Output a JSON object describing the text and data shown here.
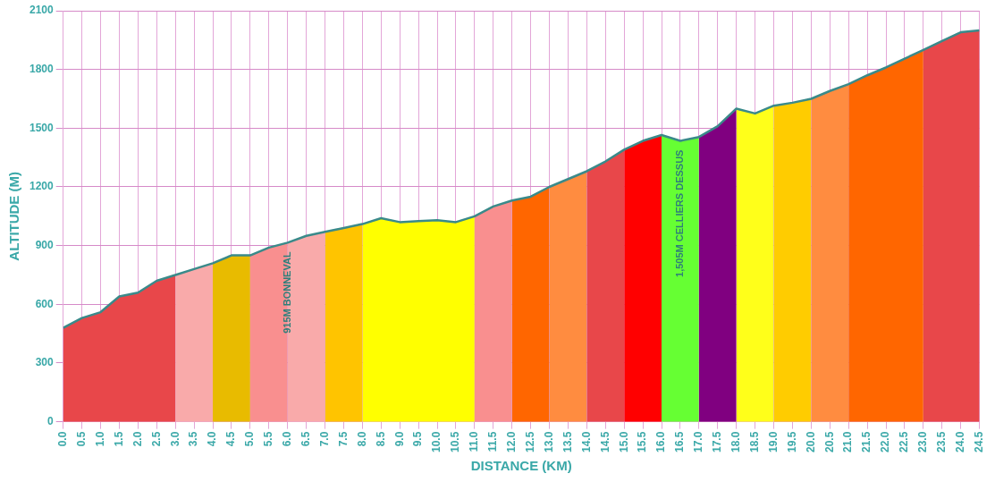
{
  "chart_data": {
    "type": "area",
    "xlabel": "DISTANCE (KM)",
    "ylabel": "ALTITUDE (M)",
    "xlim": [
      0,
      24.5
    ],
    "xticks": [
      {
        "value": 0,
        "label": "0.0"
      },
      {
        "value": 0.5,
        "label": "0.5"
      },
      {
        "value": 1,
        "label": "1.0"
      },
      {
        "value": 1.5,
        "label": "1.5"
      },
      {
        "value": 2,
        "label": "2.0"
      },
      {
        "value": 2.5,
        "label": "2.5"
      },
      {
        "value": 3,
        "label": "3.0"
      },
      {
        "value": 3.5,
        "label": "3.5"
      },
      {
        "value": 4,
        "label": "4.0"
      },
      {
        "value": 4.5,
        "label": "4.5"
      },
      {
        "value": 5,
        "label": "5.0"
      },
      {
        "value": 5.5,
        "label": "5.5"
      },
      {
        "value": 6,
        "label": "6.0"
      },
      {
        "value": 6.5,
        "label": "6.5"
      },
      {
        "value": 7,
        "label": "7.0"
      },
      {
        "value": 7.5,
        "label": "7.5"
      },
      {
        "value": 8,
        "label": "8.0"
      },
      {
        "value": 8.5,
        "label": "8.5"
      },
      {
        "value": 9,
        "label": "9.0"
      },
      {
        "value": 9.5,
        "label": "9.5"
      },
      {
        "value": 10,
        "label": "10.0"
      },
      {
        "value": 10.5,
        "label": "10.5"
      },
      {
        "value": 11,
        "label": "11.0"
      },
      {
        "value": 11.5,
        "label": "11.5"
      },
      {
        "value": 12,
        "label": "12.0"
      },
      {
        "value": 12.5,
        "label": "12.5"
      },
      {
        "value": 13,
        "label": "13.0"
      },
      {
        "value": 13.5,
        "label": "13.5"
      },
      {
        "value": 14,
        "label": "14.0"
      },
      {
        "value": 14.5,
        "label": "14.5"
      },
      {
        "value": 15,
        "label": "15.0"
      },
      {
        "value": 15.5,
        "label": "15.5"
      },
      {
        "value": 16,
        "label": "16.0"
      },
      {
        "value": 16.5,
        "label": "16.5"
      },
      {
        "value": 17,
        "label": "17.0"
      },
      {
        "value": 17.5,
        "label": "17.5"
      },
      {
        "value": 18,
        "label": "18.0"
      },
      {
        "value": 18.5,
        "label": "18.5"
      },
      {
        "value": 19,
        "label": "19.0"
      },
      {
        "value": 19.5,
        "label": "19.5"
      },
      {
        "value": 20,
        "label": "20.0"
      },
      {
        "value": 20.5,
        "label": "20.5"
      },
      {
        "value": 21,
        "label": "21.0"
      },
      {
        "value": 21.5,
        "label": "21.5"
      },
      {
        "value": 22,
        "label": "22.0"
      },
      {
        "value": 22.5,
        "label": "22.5"
      },
      {
        "value": 23,
        "label": "23.0"
      },
      {
        "value": 23.5,
        "label": "23.5"
      },
      {
        "value": 24,
        "label": "24.0"
      },
      {
        "value": 24.5,
        "label": "24.5"
      }
    ],
    "ylim": [
      0,
      2100
    ],
    "yticks": [
      0,
      300,
      600,
      900,
      1200,
      1500,
      1800,
      2100
    ],
    "grid": true,
    "legend": false,
    "series": [
      {
        "color": "#e8474a",
        "x": [
          0,
          0.5,
          1,
          1.5,
          2,
          2.5,
          3
        ],
        "values": [
          480,
          530,
          560,
          640,
          660,
          720,
          750
        ]
      },
      {
        "color": "#f9aaaa",
        "x": [
          3,
          3.5,
          4
        ],
        "values": [
          750,
          780,
          810
        ]
      },
      {
        "color": "#e8bb00",
        "x": [
          4,
          4.5,
          5
        ],
        "values": [
          810,
          850,
          850
        ]
      },
      {
        "color": "#f98f8f",
        "x": [
          5,
          5.5,
          6
        ],
        "values": [
          850,
          890,
          915
        ]
      },
      {
        "color": "#f9aaaa",
        "x": [
          6,
          6.5,
          7
        ],
        "values": [
          915,
          950,
          970
        ]
      },
      {
        "color": "#ffc400",
        "x": [
          7,
          7.5,
          8
        ],
        "values": [
          970,
          990,
          1010
        ]
      },
      {
        "color": "#ffff00",
        "x": [
          8,
          8.5,
          9,
          9.5,
          10,
          10.5,
          11
        ],
        "values": [
          1010,
          1040,
          1020,
          1025,
          1030,
          1020,
          1050
        ]
      },
      {
        "color": "#f98f8f",
        "x": [
          11,
          11.5,
          12
        ],
        "values": [
          1050,
          1100,
          1130
        ]
      },
      {
        "color": "#ff6600",
        "x": [
          12,
          12.5,
          13
        ],
        "values": [
          1130,
          1150,
          1200
        ]
      },
      {
        "color": "#ff8c40",
        "x": [
          13,
          13.5,
          14
        ],
        "values": [
          1200,
          1240,
          1280
        ]
      },
      {
        "color": "#e8474a",
        "x": [
          14,
          14.5,
          15
        ],
        "values": [
          1280,
          1330,
          1390
        ]
      },
      {
        "color": "#ff0000",
        "x": [
          15,
          15.5,
          16
        ],
        "values": [
          1390,
          1435,
          1465
        ]
      },
      {
        "color": "#66ff33",
        "x": [
          16,
          16.5,
          17
        ],
        "values": [
          1465,
          1435,
          1455
        ]
      },
      {
        "color": "#800080",
        "x": [
          17,
          17.5,
          18
        ],
        "values": [
          1455,
          1510,
          1600
        ]
      },
      {
        "color": "#ffff1a",
        "x": [
          18,
          18.5,
          19
        ],
        "values": [
          1600,
          1575,
          1615
        ]
      },
      {
        "color": "#ffcc00",
        "x": [
          19,
          19.5,
          20
        ],
        "values": [
          1615,
          1630,
          1650
        ]
      },
      {
        "color": "#ff8c40",
        "x": [
          20,
          20.5,
          21
        ],
        "values": [
          1650,
          1690,
          1725
        ]
      },
      {
        "color": "#ff6600",
        "x": [
          21,
          21.5,
          22,
          22.5,
          23
        ],
        "values": [
          1725,
          1770,
          1810,
          1855,
          1900
        ]
      },
      {
        "color": "#e8474a",
        "x": [
          23,
          23.5,
          24,
          24.5
        ],
        "values": [
          1900,
          1945,
          1990,
          2000
        ]
      },
      {
        "type": "line",
        "color": "#3a8a8a",
        "x": [
          0,
          0.5,
          1,
          1.5,
          2,
          2.5,
          3,
          3.5,
          4,
          4.5,
          5,
          5.5,
          6,
          6.5,
          7,
          7.5,
          8,
          8.5,
          9,
          9.5,
          10,
          10.5,
          11,
          11.5,
          12,
          12.5,
          13,
          13.5,
          14,
          14.5,
          15,
          15.5,
          16,
          16.5,
          17,
          17.5,
          18,
          18.5,
          19,
          19.5,
          20,
          20.5,
          21,
          21.5,
          22,
          22.5,
          23,
          23.5,
          24,
          24.5
        ],
        "values": [
          480,
          530,
          560,
          640,
          660,
          720,
          750,
          780,
          810,
          850,
          850,
          890,
          915,
          950,
          970,
          990,
          1010,
          1040,
          1020,
          1025,
          1030,
          1020,
          1050,
          1100,
          1130,
          1150,
          1200,
          1240,
          1280,
          1330,
          1390,
          1435,
          1465,
          1435,
          1455,
          1510,
          1600,
          1575,
          1615,
          1630,
          1650,
          1690,
          1725,
          1770,
          1810,
          1855,
          1900,
          1945,
          1990,
          2000
        ]
      }
    ],
    "annotations": [
      {
        "text": "915M BONNEVAL",
        "x": 6,
        "y": 915
      },
      {
        "text": "1,505M CELLIERS DESSUS",
        "x": 16.5,
        "y": 1435
      }
    ]
  }
}
